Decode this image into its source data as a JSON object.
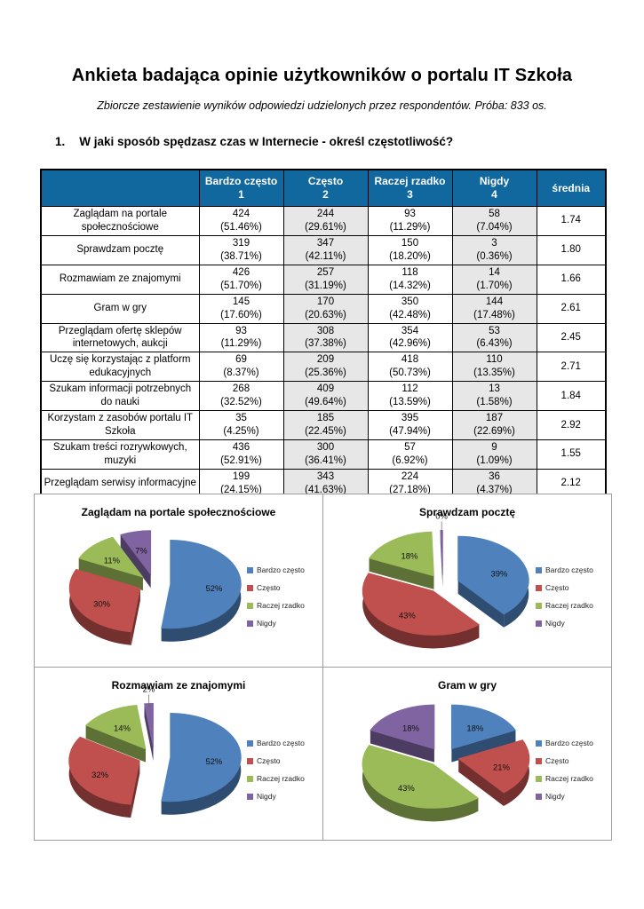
{
  "header": {
    "title": "Ankieta badająca opinie użytkowników o portalu IT Szkoła",
    "subtitle": "Zbiorcze zestawienie wyników odpowiedzi udzielonych przez respondentów.  Próba: 833 os."
  },
  "question": {
    "number": "1.",
    "text": "W jaki sposób spędzasz czas w Internecie - określ częstotliwość?"
  },
  "table": {
    "header_bg": "#11689E",
    "shaded_columns": [
      1,
      3
    ],
    "header_columns": [
      {
        "label": "Bardzo często",
        "sub": "1"
      },
      {
        "label": "Często",
        "sub": "2"
      },
      {
        "label": "Raczej rzadko",
        "sub": "3"
      },
      {
        "label": "Nigdy",
        "sub": "4"
      },
      {
        "label": "średnia",
        "sub": ""
      }
    ],
    "rows": [
      {
        "label": "Zaglądam na portale społecznościowe",
        "cells": [
          {
            "count": "424",
            "pct": "51.46%"
          },
          {
            "count": "244",
            "pct": "29.61%"
          },
          {
            "count": "93",
            "pct": "11.29%"
          },
          {
            "count": "58",
            "pct": "7.04%"
          }
        ],
        "mean": "1.74"
      },
      {
        "label": "Sprawdzam pocztę",
        "cells": [
          {
            "count": "319",
            "pct": "38.71%"
          },
          {
            "count": "347",
            "pct": "42.11%"
          },
          {
            "count": "150",
            "pct": "18.20%"
          },
          {
            "count": "3",
            "pct": "0.36%"
          }
        ],
        "mean": "1.80"
      },
      {
        "label": "Rozmawiam ze znajomymi",
        "cells": [
          {
            "count": "426",
            "pct": "51.70%"
          },
          {
            "count": "257",
            "pct": "31.19%"
          },
          {
            "count": "118",
            "pct": "14.32%"
          },
          {
            "count": "14",
            "pct": "1.70%"
          }
        ],
        "mean": "1.66"
      },
      {
        "label": "Gram w gry",
        "cells": [
          {
            "count": "145",
            "pct": "17.60%"
          },
          {
            "count": "170",
            "pct": "20.63%"
          },
          {
            "count": "350",
            "pct": "42.48%"
          },
          {
            "count": "144",
            "pct": "17.48%"
          }
        ],
        "mean": "2.61"
      },
      {
        "label": "Przeglądam ofertę sklepów internetowych, aukcji",
        "cells": [
          {
            "count": "93",
            "pct": "11.29%"
          },
          {
            "count": "308",
            "pct": "37.38%"
          },
          {
            "count": "354",
            "pct": "42.96%"
          },
          {
            "count": "53",
            "pct": "6.43%"
          }
        ],
        "mean": "2.45"
      },
      {
        "label": "Uczę się korzystając z platform edukacyjnych",
        "cells": [
          {
            "count": "69",
            "pct": "8.37%"
          },
          {
            "count": "209",
            "pct": "25.36%"
          },
          {
            "count": "418",
            "pct": "50.73%"
          },
          {
            "count": "110",
            "pct": "13.35%"
          }
        ],
        "mean": "2.71"
      },
      {
        "label": "Szukam informacji potrzebnych do nauki",
        "cells": [
          {
            "count": "268",
            "pct": "32.52%"
          },
          {
            "count": "409",
            "pct": "49.64%"
          },
          {
            "count": "112",
            "pct": "13.59%"
          },
          {
            "count": "13",
            "pct": "1.58%"
          }
        ],
        "mean": "1.84"
      },
      {
        "label": "Korzystam z zasobów portalu IT Szkoła",
        "cells": [
          {
            "count": "35",
            "pct": "4.25%"
          },
          {
            "count": "185",
            "pct": "22.45%"
          },
          {
            "count": "395",
            "pct": "47.94%"
          },
          {
            "count": "187",
            "pct": "22.69%"
          }
        ],
        "mean": "2.92"
      },
      {
        "label": "Szukam treści rozrywkowych, muzyki",
        "cells": [
          {
            "count": "436",
            "pct": "52.91%"
          },
          {
            "count": "300",
            "pct": "36.41%"
          },
          {
            "count": "57",
            "pct": "6.92%"
          },
          {
            "count": "9",
            "pct": "1.09%"
          }
        ],
        "mean": "1.55"
      },
      {
        "label": "Przeglądam serwisy informacyjne",
        "cells": [
          {
            "count": "199",
            "pct": "24.15%"
          },
          {
            "count": "343",
            "pct": "41.63%"
          },
          {
            "count": "224",
            "pct": "27.18%"
          },
          {
            "count": "36",
            "pct": "4.37%"
          }
        ],
        "mean": "2.12"
      }
    ]
  },
  "chart_data": [
    {
      "type": "pie",
      "title": "Zaglądam na portale społecznościowe",
      "labels": [
        "Bardzo często",
        "Często",
        "Raczej rzadko",
        "Nigdy"
      ],
      "values": [
        52,
        30,
        11,
        7
      ],
      "colors": [
        "#4F81BD",
        "#C0504D",
        "#9BBB59",
        "#8064A2"
      ],
      "effect": "3d-exploded",
      "legend_position": "right"
    },
    {
      "type": "pie",
      "title": "Sprawdzam pocztę",
      "labels": [
        "Bardzo często",
        "Często",
        "Raczej rzadko",
        "Nigdy"
      ],
      "values": [
        39,
        43,
        18,
        0
      ],
      "colors": [
        "#4F81BD",
        "#C0504D",
        "#9BBB59",
        "#8064A2"
      ],
      "effect": "3d-exploded",
      "legend_position": "right"
    },
    {
      "type": "pie",
      "title": "Rozmawiam ze znajomymi",
      "labels": [
        "Bardzo często",
        "Często",
        "Raczej rzadko",
        "Nigdy"
      ],
      "values": [
        52,
        32,
        14,
        2
      ],
      "colors": [
        "#4F81BD",
        "#C0504D",
        "#9BBB59",
        "#8064A2"
      ],
      "effect": "3d-exploded",
      "legend_position": "right"
    },
    {
      "type": "pie",
      "title": "Gram w gry",
      "labels": [
        "Bardzo często",
        "Często",
        "Raczej rzadko",
        "Nigdy"
      ],
      "values": [
        18,
        21,
        43,
        18
      ],
      "colors": [
        "#4F81BD",
        "#C0504D",
        "#9BBB59",
        "#8064A2"
      ],
      "effect": "3d-exploded",
      "legend_position": "right"
    }
  ]
}
